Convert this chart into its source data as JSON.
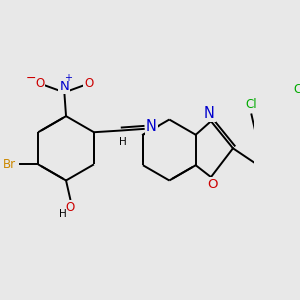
{
  "bg_color": "#e8e8e8",
  "bond_color": "#000000",
  "bond_width": 1.4,
  "dbo": 0.018,
  "atom_colors": {
    "N_nitro": "#0000cc",
    "O_nitro": "#cc0000",
    "N_imine": "#0000cc",
    "N_benz": "#0000cc",
    "O_benz": "#cc0000",
    "Br": "#cc8800",
    "O_oh": "#cc0000",
    "Cl": "#00aa00"
  },
  "fs": 8.5,
  "fig_w": 3.0,
  "fig_h": 3.0,
  "dpi": 100,
  "xlim": [
    0,
    300
  ],
  "ylim": [
    0,
    300
  ]
}
